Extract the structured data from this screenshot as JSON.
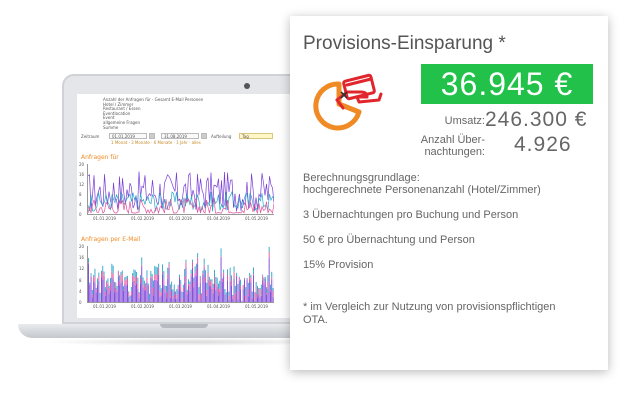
{
  "card": {
    "title": "Provisions-Einsparung *",
    "savings": "36.945 €",
    "revenue_label": "Umsatz:",
    "revenue_value": "246.300 €",
    "nights_label_1": "Anzahl Über-",
    "nights_label_2": "nachtungen:",
    "nights_value": "4.926",
    "basis_title": "Berechnungsgrundlage:",
    "basis_text": "hochgerechnete Personenanzahl (Hotel/Zimmer)",
    "line1": "3 Übernachtungen pro Buchung und Person",
    "line2": "50 € pro Übernachtung und Person",
    "line3": "15% Provision",
    "footnote_1": "* im Vergleich zur Nutzung von provisionspflichtigen",
    "footnote_2": "OTA.",
    "colors": {
      "accent": "#22c24a",
      "icon_orange": "#f08a24",
      "icon_red": "#e0262c"
    }
  },
  "laptop": {
    "header_lines": [
      "Anzahl der Anfragen für · Gesamt E-Mail Personen",
      "Hotel / Zimmer",
      "Restaurant / Essen",
      "Eventlocation",
      "Event",
      "allgemeine Fragen",
      "Summe"
    ],
    "filter_label": "Zeitraum",
    "date_from": "01.01.2019",
    "date_to": "31.08.2019",
    "group_label": "Aufteilung",
    "group_value": "Tag",
    "quick_links": "1 Monat · 3 Monate · 6 Monate · 1 Jahr · alles",
    "chart1_title": "Anfragen für",
    "chart2_title": "Anfragen per E-Mail",
    "chart1_yticks": [
      "20",
      "16",
      "12",
      "8",
      "4",
      "0"
    ],
    "chart2_yticks": [
      "20",
      "16",
      "12",
      "8",
      "4",
      "0"
    ],
    "chart1_xticks": [
      "01.01.2019",
      "01.02.2019",
      "01.03.2019",
      "01.04.2019",
      "01.05.2019"
    ],
    "chart2_xticks": [
      "01.01.2019",
      "01.02.2019",
      "01.03.2019",
      "01.04.2019",
      "01.05.2019"
    ]
  }
}
